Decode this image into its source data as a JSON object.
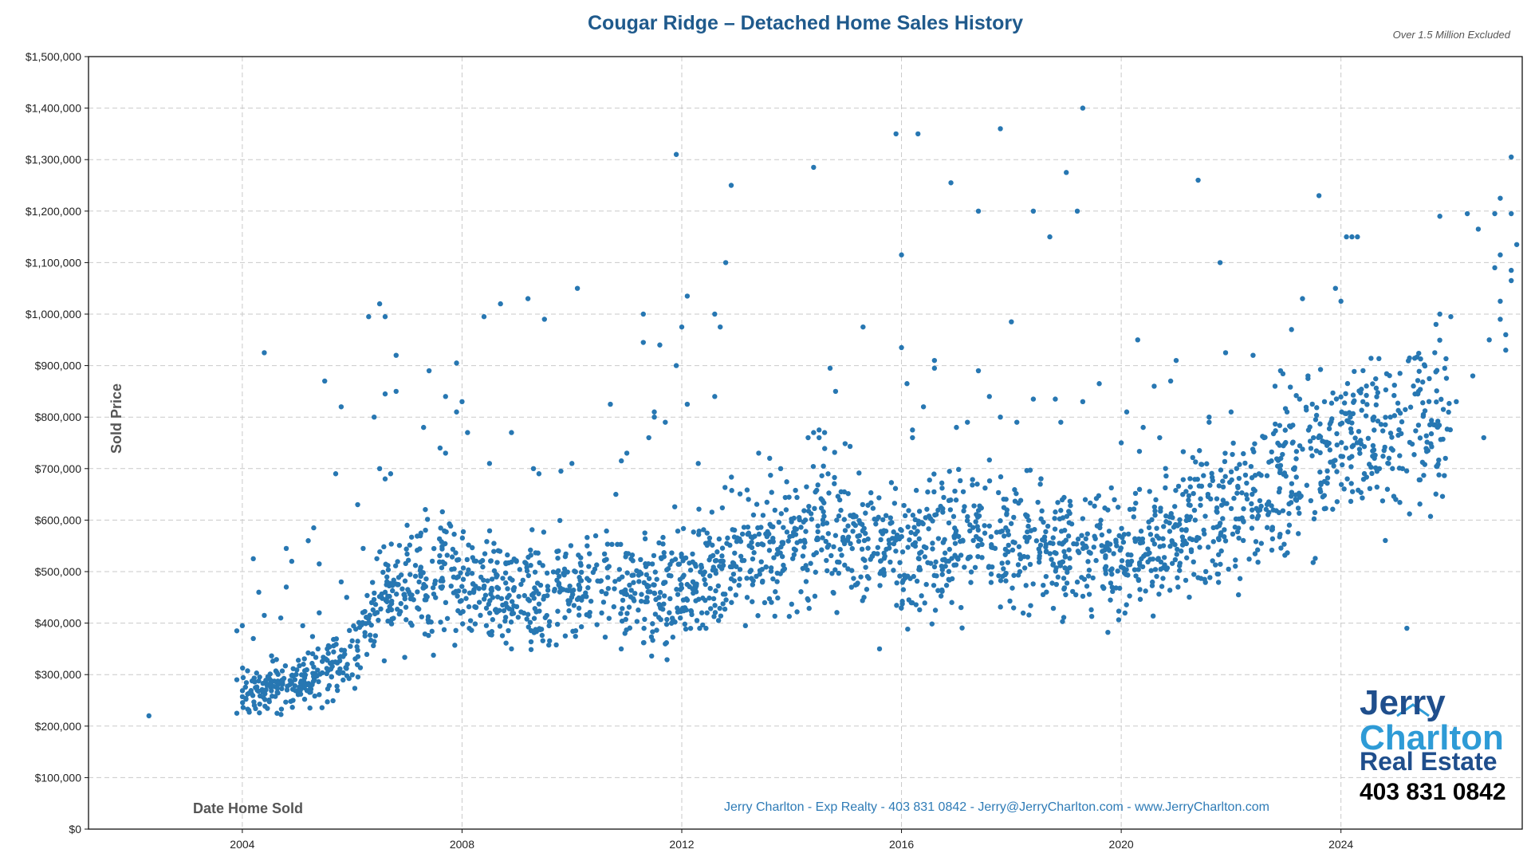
{
  "chart_data": {
    "type": "scatter",
    "title": "Cougar Ridge – Detached Home Sales History",
    "note": "Over 1.5 Million Excluded",
    "xlabel": "Date Home Sold",
    "ylabel": "Sold Price",
    "xlim": [
      2001.2,
      2027.3
    ],
    "ylim": [
      0,
      1500000
    ],
    "x_ticks": [
      2004,
      2008,
      2012,
      2016,
      2020,
      2024
    ],
    "x_tick_labels": [
      "2004",
      "2008",
      "2012",
      "2016",
      "2020",
      "2024"
    ],
    "y_ticks": [
      0,
      100000,
      200000,
      300000,
      400000,
      500000,
      600000,
      700000,
      800000,
      900000,
      1000000,
      1100000,
      1200000,
      1300000,
      1400000,
      1500000
    ],
    "y_tick_labels": [
      "$0",
      "$100,000",
      "$200,000",
      "$300,000",
      "$400,000",
      "$500,000",
      "$600,000",
      "$700,000",
      "$800,000",
      "$900,000",
      "$1,000,000",
      "$1,100,000",
      "$1,200,000",
      "$1,300,000",
      "$1,400,000",
      "$1,500,000"
    ],
    "grid": true,
    "marker_color": "#2777b2",
    "points": [
      [
        2002.3,
        220000
      ],
      [
        2003.9,
        225000
      ],
      [
        2003.9,
        290000
      ],
      [
        2003.9,
        385000
      ],
      [
        2004.0,
        395000
      ],
      [
        2004.2,
        525000
      ],
      [
        2004.2,
        370000
      ],
      [
        2004.3,
        460000
      ],
      [
        2004.4,
        415000
      ],
      [
        2004.4,
        925000
      ],
      [
        2004.7,
        410000
      ],
      [
        2004.8,
        470000
      ],
      [
        2004.8,
        545000
      ],
      [
        2004.9,
        520000
      ],
      [
        2005.1,
        395000
      ],
      [
        2005.2,
        560000
      ],
      [
        2005.3,
        585000
      ],
      [
        2005.4,
        420000
      ],
      [
        2005.4,
        515000
      ],
      [
        2005.5,
        870000
      ],
      [
        2005.7,
        690000
      ],
      [
        2005.8,
        820000
      ],
      [
        2005.8,
        480000
      ],
      [
        2005.9,
        450000
      ],
      [
        2006.1,
        630000
      ],
      [
        2006.2,
        545000
      ],
      [
        2006.3,
        995000
      ],
      [
        2006.4,
        800000
      ],
      [
        2006.5,
        1020000
      ],
      [
        2006.5,
        700000
      ],
      [
        2006.6,
        680000
      ],
      [
        2006.6,
        845000
      ],
      [
        2006.6,
        995000
      ],
      [
        2006.7,
        690000
      ],
      [
        2006.8,
        850000
      ],
      [
        2006.8,
        920000
      ],
      [
        2007.0,
        590000
      ],
      [
        2007.3,
        780000
      ],
      [
        2007.4,
        890000
      ],
      [
        2007.6,
        740000
      ],
      [
        2007.7,
        840000
      ],
      [
        2007.7,
        730000
      ],
      [
        2007.9,
        905000
      ],
      [
        2007.9,
        810000
      ],
      [
        2008.0,
        830000
      ],
      [
        2008.1,
        770000
      ],
      [
        2008.4,
        995000
      ],
      [
        2008.5,
        710000
      ],
      [
        2008.7,
        1020000
      ],
      [
        2008.9,
        770000
      ],
      [
        2008.9,
        350000
      ],
      [
        2009.2,
        1030000
      ],
      [
        2009.3,
        700000
      ],
      [
        2009.4,
        690000
      ],
      [
        2009.5,
        990000
      ],
      [
        2009.8,
        695000
      ],
      [
        2010.0,
        710000
      ],
      [
        2010.1,
        1050000
      ],
      [
        2010.7,
        825000
      ],
      [
        2010.8,
        650000
      ],
      [
        2010.9,
        715000
      ],
      [
        2011.0,
        730000
      ],
      [
        2011.3,
        945000
      ],
      [
        2011.3,
        1000000
      ],
      [
        2011.4,
        760000
      ],
      [
        2011.5,
        800000
      ],
      [
        2011.5,
        810000
      ],
      [
        2011.6,
        940000
      ],
      [
        2011.7,
        790000
      ],
      [
        2011.9,
        1310000
      ],
      [
        2011.9,
        900000
      ],
      [
        2012.0,
        975000
      ],
      [
        2012.1,
        1035000
      ],
      [
        2012.1,
        825000
      ],
      [
        2012.3,
        710000
      ],
      [
        2012.6,
        840000
      ],
      [
        2012.6,
        1000000
      ],
      [
        2012.7,
        975000
      ],
      [
        2012.8,
        1100000
      ],
      [
        2012.9,
        1250000
      ],
      [
        2013.4,
        730000
      ],
      [
        2013.6,
        720000
      ],
      [
        2013.8,
        700000
      ],
      [
        2013.9,
        620000
      ],
      [
        2014.3,
        760000
      ],
      [
        2014.4,
        770000
      ],
      [
        2014.4,
        1285000
      ],
      [
        2014.5,
        760000
      ],
      [
        2014.5,
        775000
      ],
      [
        2014.6,
        770000
      ],
      [
        2014.7,
        895000
      ],
      [
        2014.8,
        850000
      ],
      [
        2014.9,
        655000
      ],
      [
        2015.3,
        975000
      ],
      [
        2015.6,
        350000
      ],
      [
        2015.9,
        1350000
      ],
      [
        2016.0,
        1115000
      ],
      [
        2016.0,
        935000
      ],
      [
        2016.1,
        865000
      ],
      [
        2016.2,
        760000
      ],
      [
        2016.2,
        775000
      ],
      [
        2016.3,
        1350000
      ],
      [
        2016.4,
        820000
      ],
      [
        2016.6,
        910000
      ],
      [
        2016.6,
        895000
      ],
      [
        2016.9,
        1255000
      ],
      [
        2017.0,
        780000
      ],
      [
        2017.2,
        790000
      ],
      [
        2017.4,
        1200000
      ],
      [
        2017.4,
        890000
      ],
      [
        2017.6,
        840000
      ],
      [
        2017.8,
        1360000
      ],
      [
        2017.8,
        800000
      ],
      [
        2018.0,
        985000
      ],
      [
        2018.1,
        790000
      ],
      [
        2018.4,
        1200000
      ],
      [
        2018.4,
        835000
      ],
      [
        2018.7,
        1150000
      ],
      [
        2018.8,
        835000
      ],
      [
        2018.9,
        790000
      ],
      [
        2019.0,
        1275000
      ],
      [
        2019.2,
        1200000
      ],
      [
        2019.3,
        1400000
      ],
      [
        2019.3,
        830000
      ],
      [
        2019.6,
        865000
      ],
      [
        2020.0,
        750000
      ],
      [
        2020.1,
        810000
      ],
      [
        2020.3,
        950000
      ],
      [
        2020.4,
        780000
      ],
      [
        2020.6,
        860000
      ],
      [
        2020.7,
        760000
      ],
      [
        2020.9,
        870000
      ],
      [
        2021.0,
        910000
      ],
      [
        2021.4,
        1260000
      ],
      [
        2021.6,
        800000
      ],
      [
        2021.6,
        790000
      ],
      [
        2021.8,
        1100000
      ],
      [
        2021.9,
        925000
      ],
      [
        2022.0,
        810000
      ],
      [
        2022.4,
        920000
      ],
      [
        2022.6,
        760000
      ],
      [
        2022.8,
        860000
      ],
      [
        2022.9,
        890000
      ],
      [
        2023.1,
        970000
      ],
      [
        2023.3,
        1030000
      ],
      [
        2023.4,
        875000
      ],
      [
        2023.4,
        880000
      ],
      [
        2023.5,
        760000
      ],
      [
        2023.6,
        1230000
      ],
      [
        2023.7,
        830000
      ],
      [
        2023.9,
        1050000
      ],
      [
        2024.0,
        1025000
      ],
      [
        2024.1,
        1150000
      ],
      [
        2024.2,
        1150000
      ],
      [
        2024.3,
        1150000
      ],
      [
        2024.4,
        830000
      ],
      [
        2024.6,
        800000
      ],
      [
        2024.7,
        700000
      ],
      [
        2024.9,
        800000
      ],
      [
        2025.2,
        390000
      ],
      [
        2025.4,
        845000
      ],
      [
        2025.5,
        805000
      ],
      [
        2025.8,
        1190000
      ],
      [
        2025.8,
        1000000
      ],
      [
        2026.0,
        995000
      ],
      [
        2026.1,
        830000
      ],
      [
        2026.3,
        1195000
      ],
      [
        2026.4,
        880000
      ],
      [
        2026.5,
        1165000
      ],
      [
        2026.6,
        760000
      ],
      [
        2026.8,
        1090000
      ],
      [
        2026.9,
        990000
      ],
      [
        2027.0,
        930000
      ],
      [
        2027.1,
        1305000
      ],
      [
        2026.9,
        1225000
      ],
      [
        2026.9,
        1115000
      ],
      [
        2027.0,
        960000
      ],
      [
        2027.1,
        1065000
      ],
      [
        2026.9,
        1025000
      ],
      [
        2027.1,
        1085000
      ],
      [
        2026.8,
        1195000
      ],
      [
        2027.1,
        1195000
      ],
      [
        2027.2,
        1135000
      ],
      [
        2026.7,
        950000
      ]
    ],
    "trend": [
      [
        2004.0,
        270000
      ],
      [
        2004.5,
        275000
      ],
      [
        2005.0,
        285000
      ],
      [
        2005.5,
        305000
      ],
      [
        2006.0,
        340000
      ],
      [
        2006.5,
        440000
      ],
      [
        2007.0,
        480000
      ],
      [
        2007.5,
        495000
      ],
      [
        2008.0,
        480000
      ],
      [
        2008.5,
        465000
      ],
      [
        2009.0,
        460000
      ],
      [
        2009.5,
        450000
      ],
      [
        2010.0,
        480000
      ],
      [
        2010.5,
        485000
      ],
      [
        2011.0,
        465000
      ],
      [
        2011.5,
        455000
      ],
      [
        2012.0,
        470000
      ],
      [
        2012.5,
        495000
      ],
      [
        2013.0,
        520000
      ],
      [
        2013.5,
        540000
      ],
      [
        2014.0,
        560000
      ],
      [
        2014.5,
        590000
      ],
      [
        2015.0,
        570000
      ],
      [
        2015.5,
        550000
      ],
      [
        2016.0,
        545000
      ],
      [
        2016.5,
        550000
      ],
      [
        2017.0,
        560000
      ],
      [
        2017.5,
        575000
      ],
      [
        2018.0,
        560000
      ],
      [
        2018.5,
        550000
      ],
      [
        2019.0,
        555000
      ],
      [
        2019.5,
        540000
      ],
      [
        2020.0,
        520000
      ],
      [
        2020.5,
        555000
      ],
      [
        2021.0,
        575000
      ],
      [
        2021.5,
        590000
      ],
      [
        2022.0,
        620000
      ],
      [
        2022.5,
        655000
      ],
      [
        2023.0,
        690000
      ],
      [
        2023.5,
        715000
      ],
      [
        2024.0,
        740000
      ],
      [
        2024.5,
        760000
      ],
      [
        2025.0,
        775000
      ],
      [
        2025.5,
        785000
      ],
      [
        2026.0,
        770000
      ]
    ]
  },
  "credit": "Jerry Charlton - Exp Realty - 403 831 0842 - Jerry@JerryCharlton.com - www.JerryCharlton.com",
  "logo": {
    "line1": "Jerry",
    "line2": "Charlton",
    "line3": "Real Estate",
    "phone": "403 831 0842"
  }
}
